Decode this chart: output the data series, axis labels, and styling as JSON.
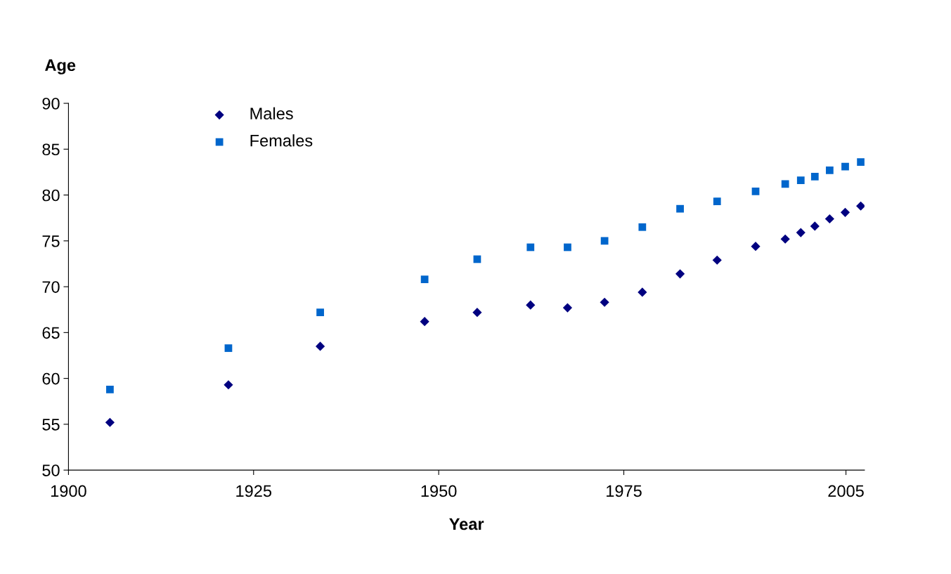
{
  "chart_data": {
    "type": "scatter",
    "xlabel": "Year",
    "ylabel": "Age",
    "x": [
      1905.6,
      1921.6,
      1934.0,
      1948.1,
      1955.2,
      1962.4,
      1967.4,
      1972.4,
      1977.5,
      1982.6,
      1987.6,
      1992.8,
      1996.8,
      1998.9,
      2000.8,
      2002.8,
      2004.9,
      2007.0
    ],
    "series": [
      {
        "name": "Males",
        "color": "#000080",
        "marker": "diamond",
        "values": [
          55.2,
          59.3,
          63.5,
          66.2,
          67.2,
          68.0,
          67.7,
          68.3,
          69.4,
          71.4,
          72.9,
          74.4,
          75.2,
          75.9,
          76.6,
          77.4,
          78.1,
          78.8
        ]
      },
      {
        "name": "Females",
        "color": "#0066cc",
        "marker": "square",
        "values": [
          58.8,
          63.3,
          67.2,
          70.8,
          73.0,
          74.3,
          74.3,
          75.0,
          76.5,
          78.5,
          79.3,
          80.4,
          81.2,
          81.6,
          82.0,
          82.7,
          83.1,
          83.6
        ]
      }
    ],
    "xlim": [
      1900,
      2007.5
    ],
    "xticks": [
      1900,
      1925,
      1950,
      1975,
      2005
    ],
    "ylim": [
      50,
      90
    ],
    "yticks": [
      50,
      55,
      60,
      65,
      70,
      75,
      80,
      85,
      90
    ],
    "grid": false,
    "legend": "top left"
  }
}
